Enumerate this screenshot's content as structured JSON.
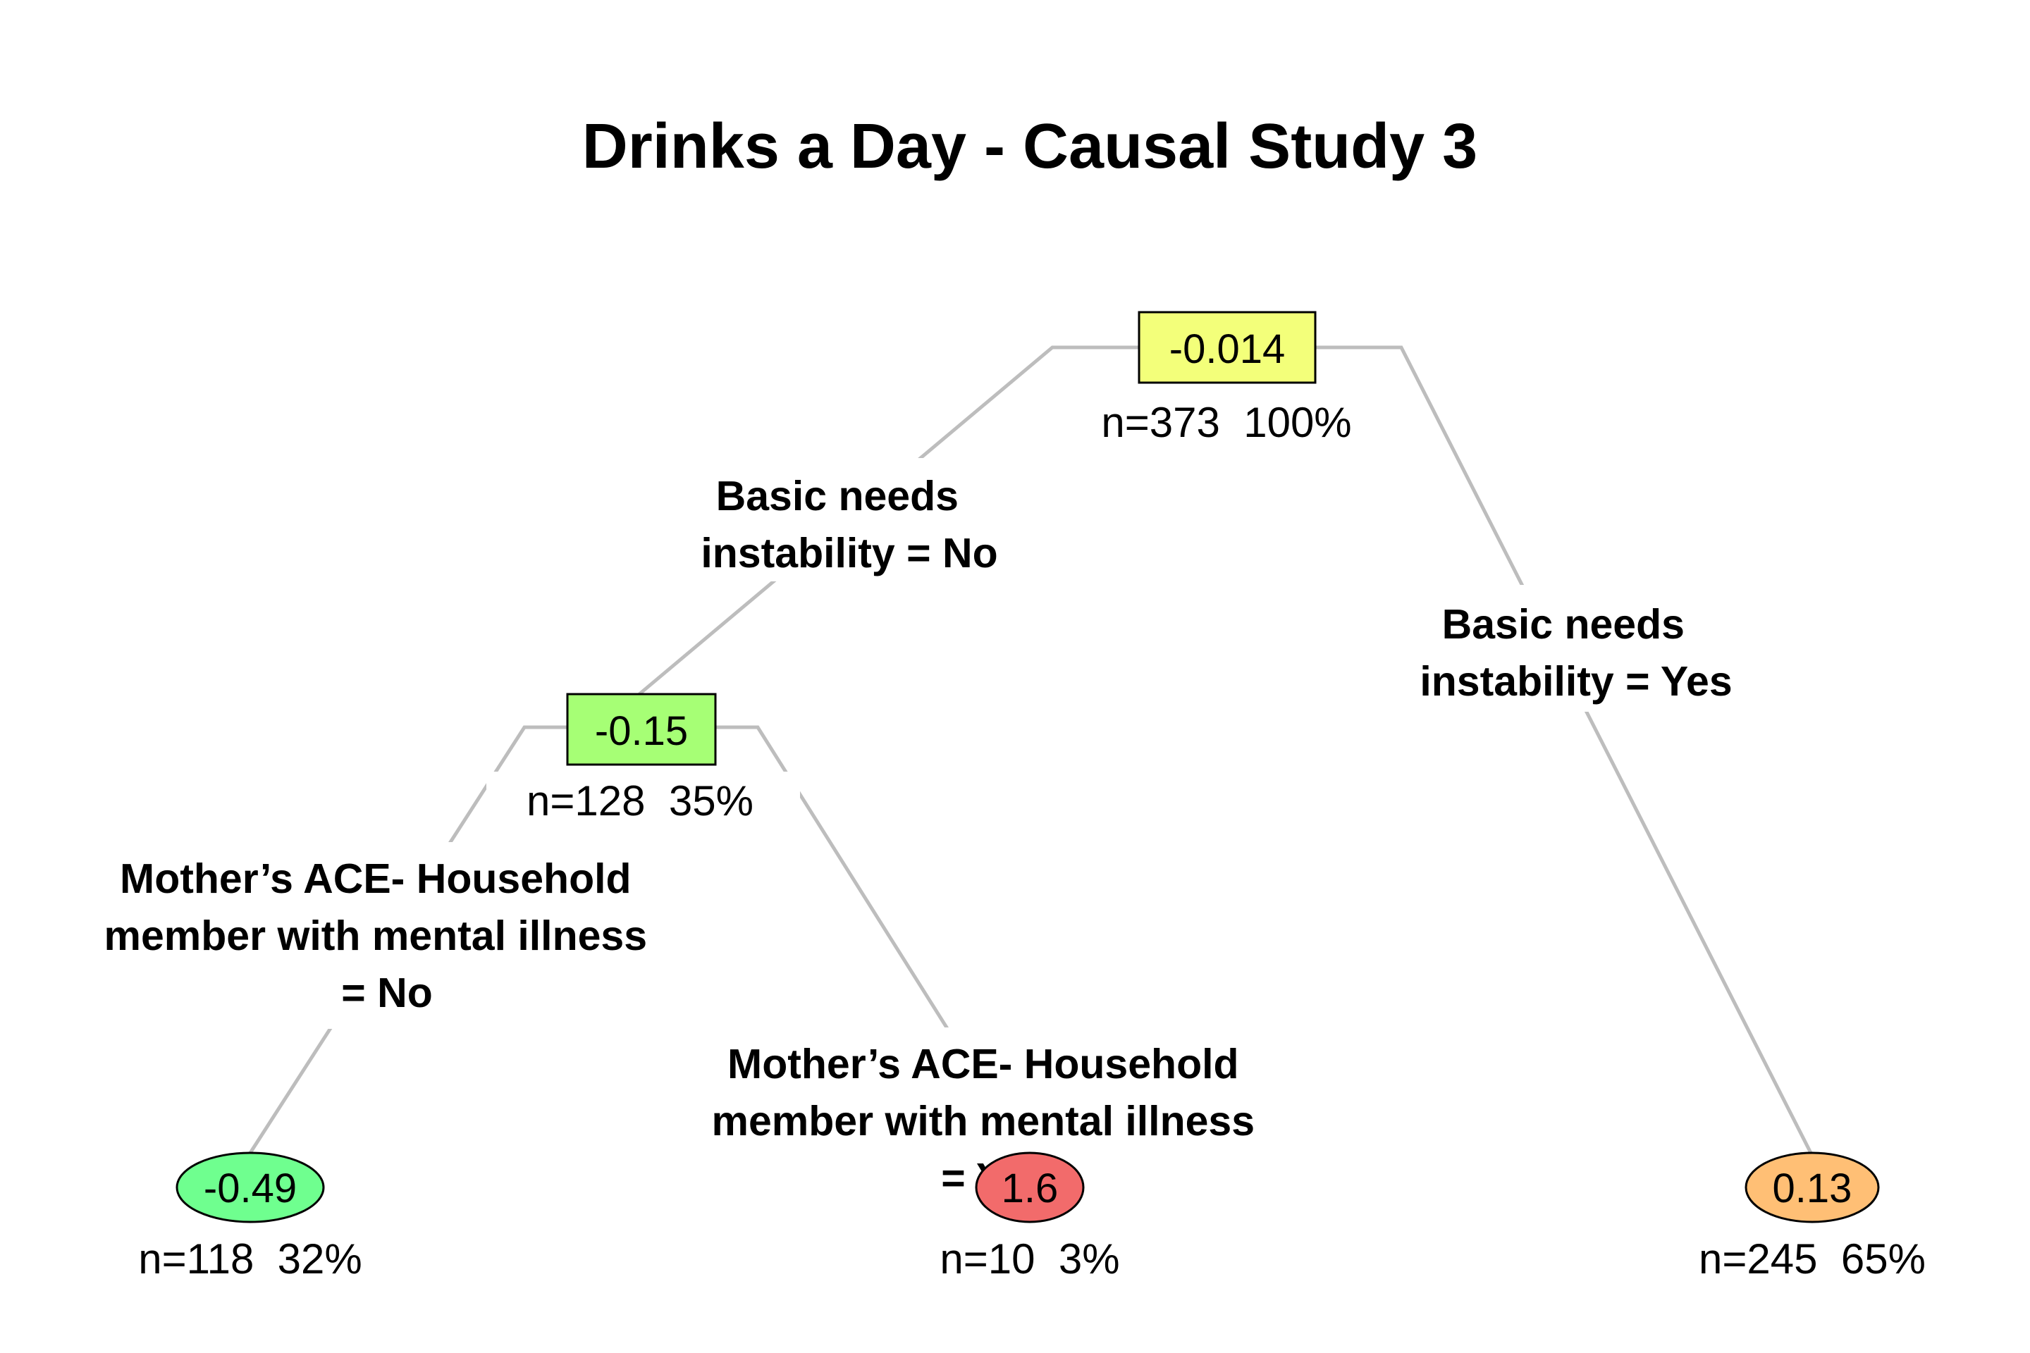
{
  "title": "Drinks a Day - Causal Study 3",
  "nodes": {
    "root": {
      "value": "-0.014",
      "stats": "n=373  100%",
      "color": "#f3ff7a",
      "shape": "box"
    },
    "left": {
      "value": "-0.15",
      "stats": "n=128  35%",
      "color": "#a6ff75",
      "shape": "box"
    },
    "leaf_left_no": {
      "value": "-0.49",
      "stats": "n=118  32%",
      "color": "#6fff8f",
      "shape": "ellipse"
    },
    "leaf_left_yes": {
      "value": "1.6",
      "stats": "n=10  3%",
      "color": "#f26b6b",
      "shape": "ellipse"
    },
    "leaf_right": {
      "value": "0.13",
      "stats": "n=245  65%",
      "color": "#ffbf75",
      "shape": "ellipse"
    }
  },
  "splits": {
    "root_left": [
      "Basic needs",
      "instability = No"
    ],
    "root_right": [
      "Basic needs",
      "instability = Yes"
    ],
    "left_no": [
      "Mother’s ACE- Household",
      "member with mental illness",
      "= No"
    ],
    "left_yes": [
      "Mother’s ACE- Household",
      "member with mental illness",
      "= Yes"
    ]
  },
  "colors": {
    "edge": "#bdbdbd",
    "background": "#ffffff"
  }
}
